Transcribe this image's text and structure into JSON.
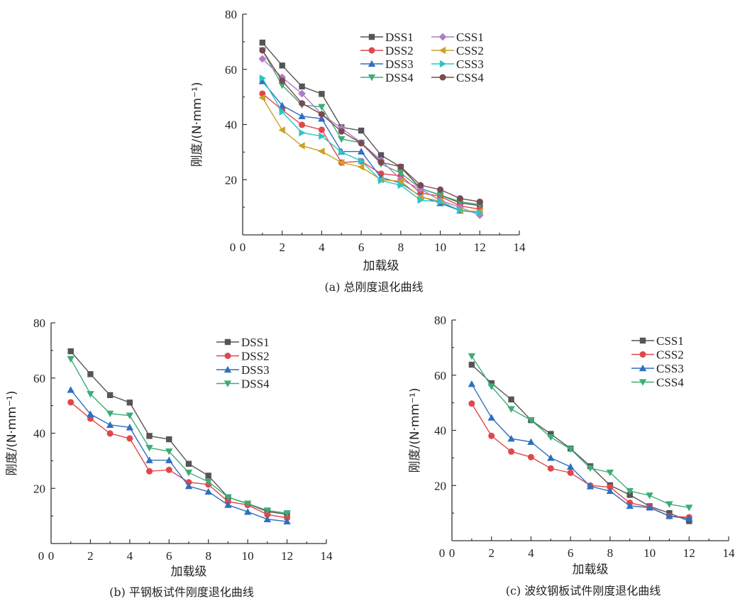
{
  "colors": {
    "DSS1": "#555555",
    "DSS2": "#e0474c",
    "DSS3": "#2f6fc0",
    "DSS4": "#3cad76",
    "CSS1": "#b07cc6",
    "CSS2": "#c9a227",
    "CSS3": "#2ec4c6",
    "CSS4": "#7a4a52",
    "CSS1_c": "#555555",
    "CSS2_c": "#e0474c",
    "CSS3_c": "#2f6fc0",
    "CSS4_c": "#3cad76"
  },
  "chart_data": [
    {
      "type": "line",
      "caption": "(a) 总刚度退化曲线",
      "xlabel": "加载级",
      "ylabel": "刚度/(N·mm⁻¹)",
      "xlim": [
        0,
        14
      ],
      "ylim": [
        0,
        80
      ],
      "xticks": [
        0,
        2,
        4,
        6,
        8,
        10,
        12,
        14
      ],
      "yticks": [
        20,
        40,
        60,
        80
      ],
      "legend_position": "top-right",
      "legend_columns": 2,
      "series": [
        {
          "name": "DSS1",
          "marker": "square",
          "color": "#555555",
          "x": [
            1,
            2,
            3,
            4,
            5,
            6,
            7,
            8,
            9,
            10,
            11,
            12
          ],
          "y": [
            69.7,
            61.4,
            53.8,
            51.1,
            39.0,
            37.8,
            28.9,
            24.6,
            16.8,
            14.4,
            11.6,
            10.6
          ]
        },
        {
          "name": "DSS2",
          "marker": "circle",
          "color": "#e0474c",
          "x": [
            1,
            2,
            3,
            4,
            5,
            6,
            7,
            8,
            9,
            10,
            11,
            12
          ],
          "y": [
            51.2,
            45.3,
            39.9,
            38.1,
            26.2,
            26.7,
            22.2,
            21.4,
            15.2,
            14.0,
            10.5,
            9.3
          ]
        },
        {
          "name": "DSS3",
          "marker": "triangle-up",
          "color": "#2f6fc0",
          "x": [
            1,
            2,
            3,
            4,
            5,
            6,
            7,
            8,
            9,
            10,
            11,
            12
          ],
          "y": [
            55.7,
            46.9,
            43.0,
            42.1,
            30.2,
            30.2,
            20.8,
            18.8,
            14.0,
            11.5,
            8.8,
            8.0
          ]
        },
        {
          "name": "DSS4",
          "marker": "triangle-down",
          "color": "#3cad76",
          "x": [
            1,
            2,
            3,
            4,
            5,
            6,
            7,
            8,
            9,
            10,
            11,
            12
          ],
          "y": [
            66.9,
            54.2,
            47.1,
            46.4,
            34.7,
            33.4,
            25.7,
            22.4,
            16.8,
            14.5,
            12.0,
            11.0
          ]
        },
        {
          "name": "CSS1",
          "marker": "diamond",
          "color": "#b07cc6",
          "x": [
            1,
            2,
            3,
            4,
            5,
            6,
            7,
            8,
            9,
            10,
            11,
            12
          ],
          "y": [
            63.8,
            57.1,
            51.2,
            43.7,
            38.7,
            33.4,
            27.0,
            20.1,
            16.6,
            12.5,
            10.0,
            7.1
          ]
        },
        {
          "name": "CSS2",
          "marker": "triangle-left",
          "color": "#c9a227",
          "x": [
            1,
            2,
            3,
            4,
            5,
            6,
            7,
            8,
            9,
            10,
            11,
            12
          ],
          "y": [
            49.7,
            38.0,
            32.3,
            30.3,
            26.2,
            24.6,
            20.0,
            19.4,
            13.7,
            12.2,
            8.9,
            8.5
          ]
        },
        {
          "name": "CSS3",
          "marker": "triangle-right",
          "color": "#2ec4c6",
          "x": [
            1,
            2,
            3,
            4,
            5,
            6,
            7,
            8,
            9,
            10,
            11,
            12
          ],
          "y": [
            56.8,
            44.6,
            37.0,
            35.8,
            30.0,
            26.8,
            19.7,
            18.0,
            12.6,
            12.0,
            8.9,
            8.0
          ]
        },
        {
          "name": "CSS4",
          "marker": "circle",
          "color": "#7a4a52",
          "x": [
            1,
            2,
            3,
            4,
            5,
            6,
            7,
            8,
            9,
            10,
            11,
            12
          ],
          "y": [
            66.9,
            55.9,
            47.7,
            43.7,
            37.5,
            33.2,
            26.3,
            24.7,
            18.0,
            16.4,
            13.2,
            12.0
          ]
        }
      ]
    },
    {
      "type": "line",
      "caption": "(b) 平钢板试件刚度退化曲线",
      "xlabel": "加载级",
      "ylabel": "刚度/(N·mm⁻¹)",
      "xlim": [
        0,
        14
      ],
      "ylim": [
        0,
        80
      ],
      "xticks": [
        0,
        2,
        4,
        6,
        8,
        10,
        12,
        14
      ],
      "yticks": [
        20,
        40,
        60,
        80
      ],
      "legend_position": "top-right",
      "legend_columns": 1,
      "series": [
        {
          "name": "DSS1",
          "marker": "square",
          "color": "#555555",
          "x": [
            1,
            2,
            3,
            4,
            5,
            6,
            7,
            8,
            9,
            10,
            11,
            12
          ],
          "y": [
            69.7,
            61.4,
            53.8,
            51.1,
            39.0,
            37.8,
            28.9,
            24.6,
            16.8,
            14.4,
            11.6,
            10.6
          ]
        },
        {
          "name": "DSS2",
          "marker": "circle",
          "color": "#e0474c",
          "x": [
            1,
            2,
            3,
            4,
            5,
            6,
            7,
            8,
            9,
            10,
            11,
            12
          ],
          "y": [
            51.2,
            45.3,
            39.9,
            38.1,
            26.2,
            26.7,
            22.2,
            21.4,
            15.2,
            14.0,
            10.5,
            9.3
          ]
        },
        {
          "name": "DSS3",
          "marker": "triangle-up",
          "color": "#2f6fc0",
          "x": [
            1,
            2,
            3,
            4,
            5,
            6,
            7,
            8,
            9,
            10,
            11,
            12
          ],
          "y": [
            55.7,
            46.9,
            43.0,
            42.1,
            30.2,
            30.2,
            20.8,
            18.8,
            14.0,
            11.5,
            8.8,
            8.0
          ]
        },
        {
          "name": "DSS4",
          "marker": "triangle-down",
          "color": "#3cad76",
          "x": [
            1,
            2,
            3,
            4,
            5,
            6,
            7,
            8,
            9,
            10,
            11,
            12
          ],
          "y": [
            66.9,
            54.2,
            47.1,
            46.4,
            34.7,
            33.4,
            25.7,
            22.4,
            16.8,
            14.5,
            12.0,
            11.0
          ]
        }
      ]
    },
    {
      "type": "line",
      "caption": "(c) 波纹钢板试件刚度退化曲线",
      "xlabel": "加载级",
      "ylabel": "刚度/(N·mm⁻¹)",
      "xlim": [
        0,
        14
      ],
      "ylim": [
        0,
        80
      ],
      "xticks": [
        0,
        2,
        4,
        6,
        8,
        10,
        12,
        14
      ],
      "yticks": [
        20,
        40,
        60,
        80
      ],
      "legend_position": "top-right",
      "legend_columns": 1,
      "series": [
        {
          "name": "CSS1",
          "marker": "square",
          "color": "#555555",
          "x": [
            1,
            2,
            3,
            4,
            5,
            6,
            7,
            8,
            9,
            10,
            11,
            12
          ],
          "y": [
            63.8,
            57.1,
            51.2,
            43.7,
            38.7,
            33.4,
            27.0,
            20.1,
            16.6,
            12.5,
            10.0,
            7.1
          ]
        },
        {
          "name": "CSS2",
          "marker": "circle",
          "color": "#e0474c",
          "x": [
            1,
            2,
            3,
            4,
            5,
            6,
            7,
            8,
            9,
            10,
            11,
            12
          ],
          "y": [
            49.7,
            38.0,
            32.3,
            30.3,
            26.2,
            24.6,
            20.0,
            19.4,
            13.7,
            12.2,
            8.9,
            8.5
          ]
        },
        {
          "name": "CSS3",
          "marker": "triangle-up",
          "color": "#2f6fc0",
          "x": [
            1,
            2,
            3,
            4,
            5,
            6,
            7,
            8,
            9,
            10,
            11,
            12
          ],
          "y": [
            56.8,
            44.6,
            37.0,
            35.8,
            30.0,
            26.8,
            19.7,
            18.0,
            12.6,
            12.0,
            8.9,
            8.0
          ]
        },
        {
          "name": "CSS4",
          "marker": "triangle-down",
          "color": "#3cad76",
          "x": [
            1,
            2,
            3,
            4,
            5,
            6,
            7,
            8,
            9,
            10,
            11,
            12
          ],
          "y": [
            66.9,
            55.9,
            47.7,
            43.7,
            37.5,
            33.2,
            26.3,
            24.7,
            18.0,
            16.4,
            13.2,
            12.0
          ]
        }
      ]
    }
  ]
}
